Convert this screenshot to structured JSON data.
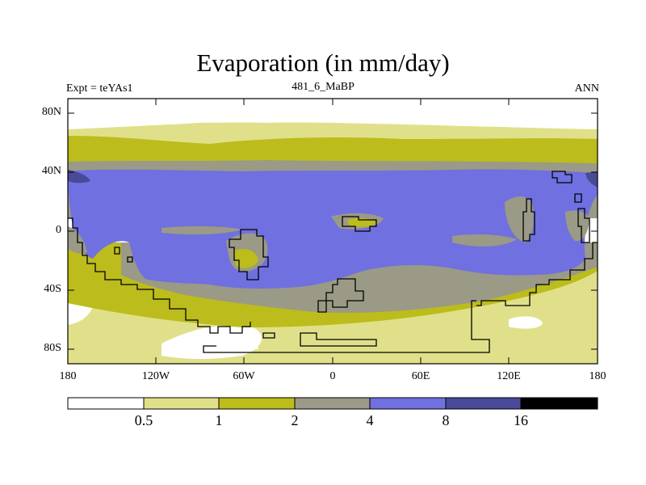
{
  "title": "Evaporation (in mm/day)",
  "experiment_label": "Expt = teYAs1",
  "subtitle": "481_6_MaBP",
  "season": "ANN",
  "map": {
    "projection": "cylindrical-equidistant",
    "lon_range": [
      -180,
      180
    ],
    "lat_range": [
      -90,
      90
    ],
    "lat_tick_labels": [
      "80N",
      "40N",
      "0",
      "40S",
      "80S"
    ],
    "lon_tick_labels": [
      "180",
      "120W",
      "60W",
      "0",
      "60E",
      "120E",
      "180"
    ]
  },
  "colorbar": {
    "levels": [
      "0.5",
      "1",
      "2",
      "4",
      "8",
      "16"
    ],
    "colors": [
      "#ffffff",
      "#e0e08a",
      "#bcbc1c",
      "#9a9a86",
      "#7070e0",
      "#4a4a98",
      "#000000"
    ]
  }
}
